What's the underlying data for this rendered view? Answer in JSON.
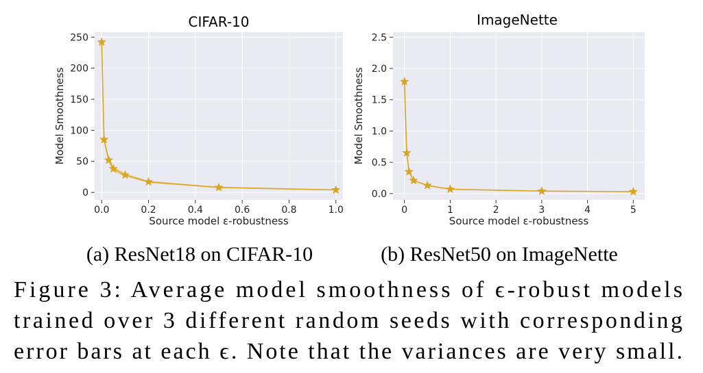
{
  "chart_data": [
    {
      "type": "line",
      "title": "CIFAR-10",
      "xlabel": "Source model ε-robustness",
      "ylabel": "Model Smoothness",
      "xlim": [
        -0.03,
        1.03
      ],
      "ylim": [
        -12,
        258
      ],
      "xticks": [
        0.0,
        0.2,
        0.4,
        0.6,
        0.8,
        1.0
      ],
      "xtick_labels": [
        "0.0",
        "0.2",
        "0.4",
        "0.6",
        "0.8",
        "1.0"
      ],
      "yticks": [
        0,
        50,
        100,
        150,
        200,
        250
      ],
      "ytick_labels": [
        "0",
        "50",
        "100",
        "150",
        "200",
        "250"
      ],
      "grid": true,
      "series": [
        {
          "name": "Model Smoothness",
          "color": "#d9a521",
          "x": [
            0.0,
            0.01,
            0.03,
            0.05,
            0.1,
            0.2,
            0.5,
            1.0
          ],
          "y": [
            242,
            85,
            52,
            38,
            28,
            17,
            8,
            4
          ],
          "y_err": [
            2,
            4,
            6,
            5,
            3,
            2,
            1,
            1
          ]
        }
      ]
    },
    {
      "type": "line",
      "title": "ImageNette",
      "xlabel": "Source model ε-robustness",
      "ylabel": "Model Smoothness",
      "xlim": [
        -0.25,
        5.25
      ],
      "ylim": [
        -0.1,
        2.58
      ],
      "xticks": [
        0,
        1,
        2,
        3,
        4,
        5
      ],
      "xtick_labels": [
        "0",
        "1",
        "2",
        "3",
        "4",
        "5"
      ],
      "yticks": [
        0.0,
        0.5,
        1.0,
        1.5,
        2.0,
        2.5
      ],
      "ytick_labels": [
        "0.0",
        "0.5",
        "1.0",
        "1.5",
        "2.0",
        "2.5"
      ],
      "grid": true,
      "series": [
        {
          "name": "Model Smoothness",
          "color": "#d9a521",
          "x": [
            0.0,
            0.05,
            0.1,
            0.2,
            0.5,
            1.0,
            3.0,
            5.0
          ],
          "y": [
            1.79,
            0.65,
            0.35,
            0.21,
            0.13,
            0.07,
            0.04,
            0.03
          ],
          "y_err": [
            0.02,
            0.02,
            0.02,
            0.01,
            0.01,
            0.01,
            0.005,
            0.005
          ]
        }
      ]
    }
  ],
  "captions": {
    "sub_a": "(a) ResNet18 on CIFAR-10",
    "sub_b": "(b) ResNet50 on ImageNette",
    "figure_lines": [
      "Figure 3: Average model smoothness of ϵ-robust models",
      "trained over 3 different random seeds with corresponding",
      "error bars at each ϵ. Note that the variances are very small."
    ]
  },
  "colors": {
    "plot_bg": "#eaeaf2",
    "grid": "#ffffff",
    "line": "#d9a521",
    "band": "#e8c56f"
  }
}
